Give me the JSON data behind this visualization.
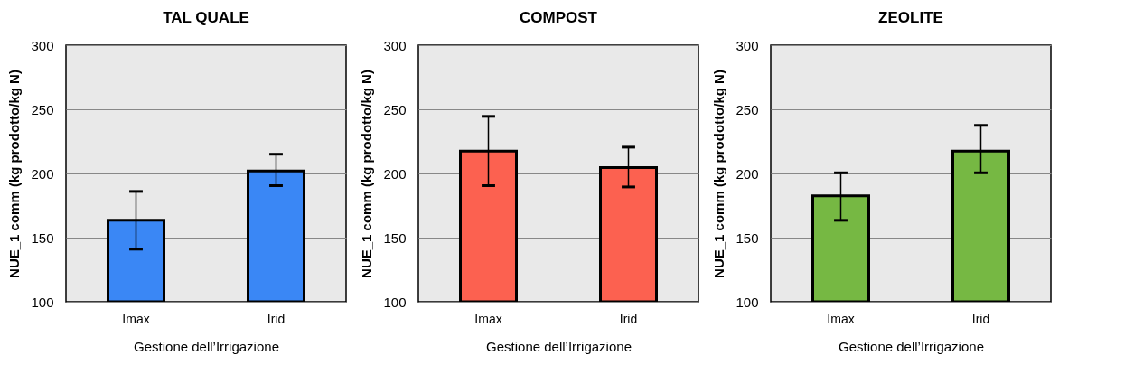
{
  "chart_data": [
    {
      "type": "bar",
      "title": "TAL QUALE",
      "xlabel": "Gestione dell’Irrigazione",
      "ylabel": "NUE_1 comm (kg prodotto/kg N)",
      "categories": [
        "Imax",
        "Irid"
      ],
      "values": [
        163.5,
        202
      ],
      "errors": [
        [
          141,
          186
        ],
        [
          190.5,
          215
        ]
      ],
      "color": "#3a87f5",
      "ylim": [
        100,
        300
      ],
      "yticks": [
        100,
        150,
        200,
        250,
        300
      ],
      "grid": "y"
    },
    {
      "type": "bar",
      "title": "COMPOST",
      "xlabel": "Gestione dell’Irrigazione",
      "ylabel": "NUE_1 comm (kg prodotto/kg N)",
      "categories": [
        "Imax",
        "Irid"
      ],
      "values": [
        217.5,
        204.5
      ],
      "errors": [
        [
          190.5,
          244.5
        ],
        [
          189.5,
          220.5
        ]
      ],
      "color": "#fc6150",
      "ylim": [
        100,
        300
      ],
      "yticks": [
        100,
        150,
        200,
        250,
        300
      ],
      "grid": "y"
    },
    {
      "type": "bar",
      "title": "ZEOLITE",
      "xlabel": "Gestione dell’Irrigazione",
      "ylabel": "NUE_1 comm (kg prodotto/kg N)",
      "categories": [
        "Imax",
        "Irid"
      ],
      "values": [
        182.5,
        217.5
      ],
      "errors": [
        [
          163.5,
          200.5
        ],
        [
          200.5,
          237.5
        ]
      ],
      "color": "#76b843",
      "ylim": [
        100,
        300
      ],
      "yticks": [
        100,
        150,
        200,
        250,
        300
      ],
      "grid": "y"
    }
  ]
}
